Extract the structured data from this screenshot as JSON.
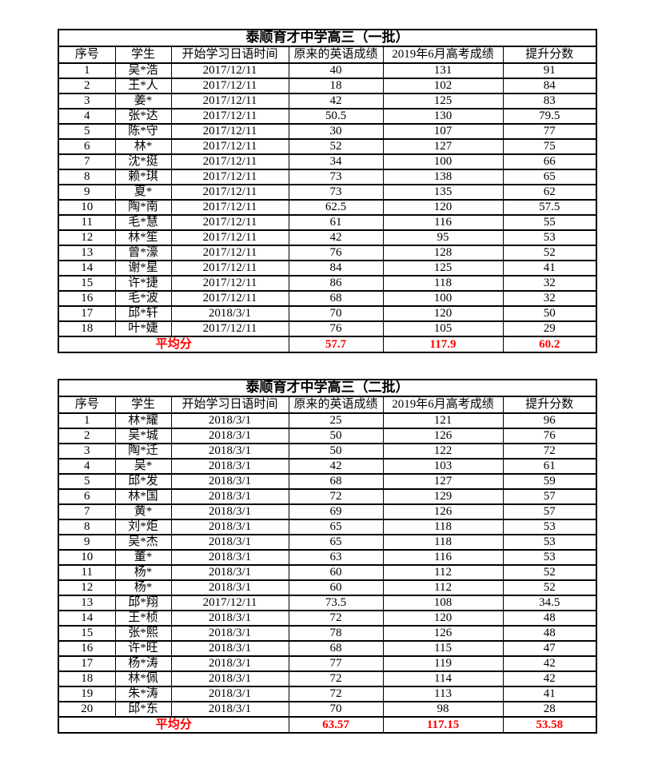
{
  "page": {
    "background": "#ffffff",
    "text_color": "#000000",
    "border_color": "#000000",
    "average_color": "#ff0000"
  },
  "tables": [
    {
      "title": "泰顺育才中学高三（一批）",
      "headers": [
        "序号",
        "学生",
        "开始学习日语时间",
        "原来的英语成绩",
        "2019年6月高考成绩",
        "提升分数"
      ],
      "rows": [
        [
          "1",
          "吴*浩",
          "2017/12/11",
          "40",
          "131",
          "91"
        ],
        [
          "2",
          "王*人",
          "2017/12/11",
          "18",
          "102",
          "84"
        ],
        [
          "3",
          "姜*",
          "2017/12/11",
          "42",
          "125",
          "83"
        ],
        [
          "4",
          "张*达",
          "2017/12/11",
          "50.5",
          "130",
          "79.5"
        ],
        [
          "5",
          "陈*守",
          "2017/12/11",
          "30",
          "107",
          "77"
        ],
        [
          "6",
          "林*",
          "2017/12/11",
          "52",
          "127",
          "75"
        ],
        [
          "7",
          "沈*挺",
          "2017/12/11",
          "34",
          "100",
          "66"
        ],
        [
          "8",
          "赖*琪",
          "2017/12/11",
          "73",
          "138",
          "65"
        ],
        [
          "9",
          "夏*",
          "2017/12/11",
          "73",
          "135",
          "62"
        ],
        [
          "10",
          "陶*南",
          "2017/12/11",
          "62.5",
          "120",
          "57.5"
        ],
        [
          "11",
          "毛*慧",
          "2017/12/11",
          "61",
          "116",
          "55"
        ],
        [
          "12",
          "林*笙",
          "2017/12/11",
          "42",
          "95",
          "53"
        ],
        [
          "13",
          "曾*濠",
          "2017/12/11",
          "76",
          "128",
          "52"
        ],
        [
          "14",
          "谢*星",
          "2017/12/11",
          "84",
          "125",
          "41"
        ],
        [
          "15",
          "许*捷",
          "2017/12/11",
          "86",
          "118",
          "32"
        ],
        [
          "16",
          "毛*波",
          "2017/12/11",
          "68",
          "100",
          "32"
        ],
        [
          "17",
          "邱*轩",
          "2018/3/1",
          "70",
          "120",
          "50"
        ],
        [
          "18",
          "叶*婕",
          "2017/12/11",
          "76",
          "105",
          "29"
        ]
      ],
      "average": {
        "label": "平均分",
        "values": [
          "57.7",
          "117.9",
          "60.2"
        ]
      }
    },
    {
      "title": "泰顺育才中学高三（二批）",
      "headers": [
        "序号",
        "学生",
        "开始学习日语时间",
        "原来的英语成绩",
        "2019年6月高考成绩",
        "提升分数"
      ],
      "rows": [
        [
          "1",
          "林*耀",
          "2018/3/1",
          "25",
          "121",
          "96"
        ],
        [
          "2",
          "吴*城",
          "2018/3/1",
          "50",
          "126",
          "76"
        ],
        [
          "3",
          "陶*迁",
          "2018/3/1",
          "50",
          "122",
          "72"
        ],
        [
          "4",
          "吴*",
          "2018/3/1",
          "42",
          "103",
          "61"
        ],
        [
          "5",
          "邱*发",
          "2018/3/1",
          "68",
          "127",
          "59"
        ],
        [
          "6",
          "林*国",
          "2018/3/1",
          "72",
          "129",
          "57"
        ],
        [
          "7",
          "黄*",
          "2018/3/1",
          "69",
          "126",
          "57"
        ],
        [
          "8",
          "刘*炬",
          "2018/3/1",
          "65",
          "118",
          "53"
        ],
        [
          "9",
          "吴*杰",
          "2018/3/1",
          "65",
          "118",
          "53"
        ],
        [
          "10",
          "董*",
          "2018/3/1",
          "63",
          "116",
          "53"
        ],
        [
          "11",
          "杨*",
          "2018/3/1",
          "60",
          "112",
          "52"
        ],
        [
          "12",
          "杨*",
          "2018/3/1",
          "60",
          "112",
          "52"
        ],
        [
          "13",
          "邱*翔",
          "2017/12/11",
          "73.5",
          "108",
          "34.5"
        ],
        [
          "14",
          "王*桢",
          "2018/3/1",
          "72",
          "120",
          "48"
        ],
        [
          "15",
          "张*熙",
          "2018/3/1",
          "78",
          "126",
          "48"
        ],
        [
          "16",
          "许*旺",
          "2018/3/1",
          "68",
          "115",
          "47"
        ],
        [
          "17",
          "杨*涛",
          "2018/3/1",
          "77",
          "119",
          "42"
        ],
        [
          "18",
          "林*佩",
          "2018/3/1",
          "72",
          "114",
          "42"
        ],
        [
          "19",
          "朱*涛",
          "2018/3/1",
          "72",
          "113",
          "41"
        ],
        [
          "20",
          "邱*东",
          "2018/3/1",
          "70",
          "98",
          "28"
        ]
      ],
      "average": {
        "label": "平均分",
        "values": [
          "63.57",
          "117.15",
          "53.58"
        ]
      }
    }
  ]
}
